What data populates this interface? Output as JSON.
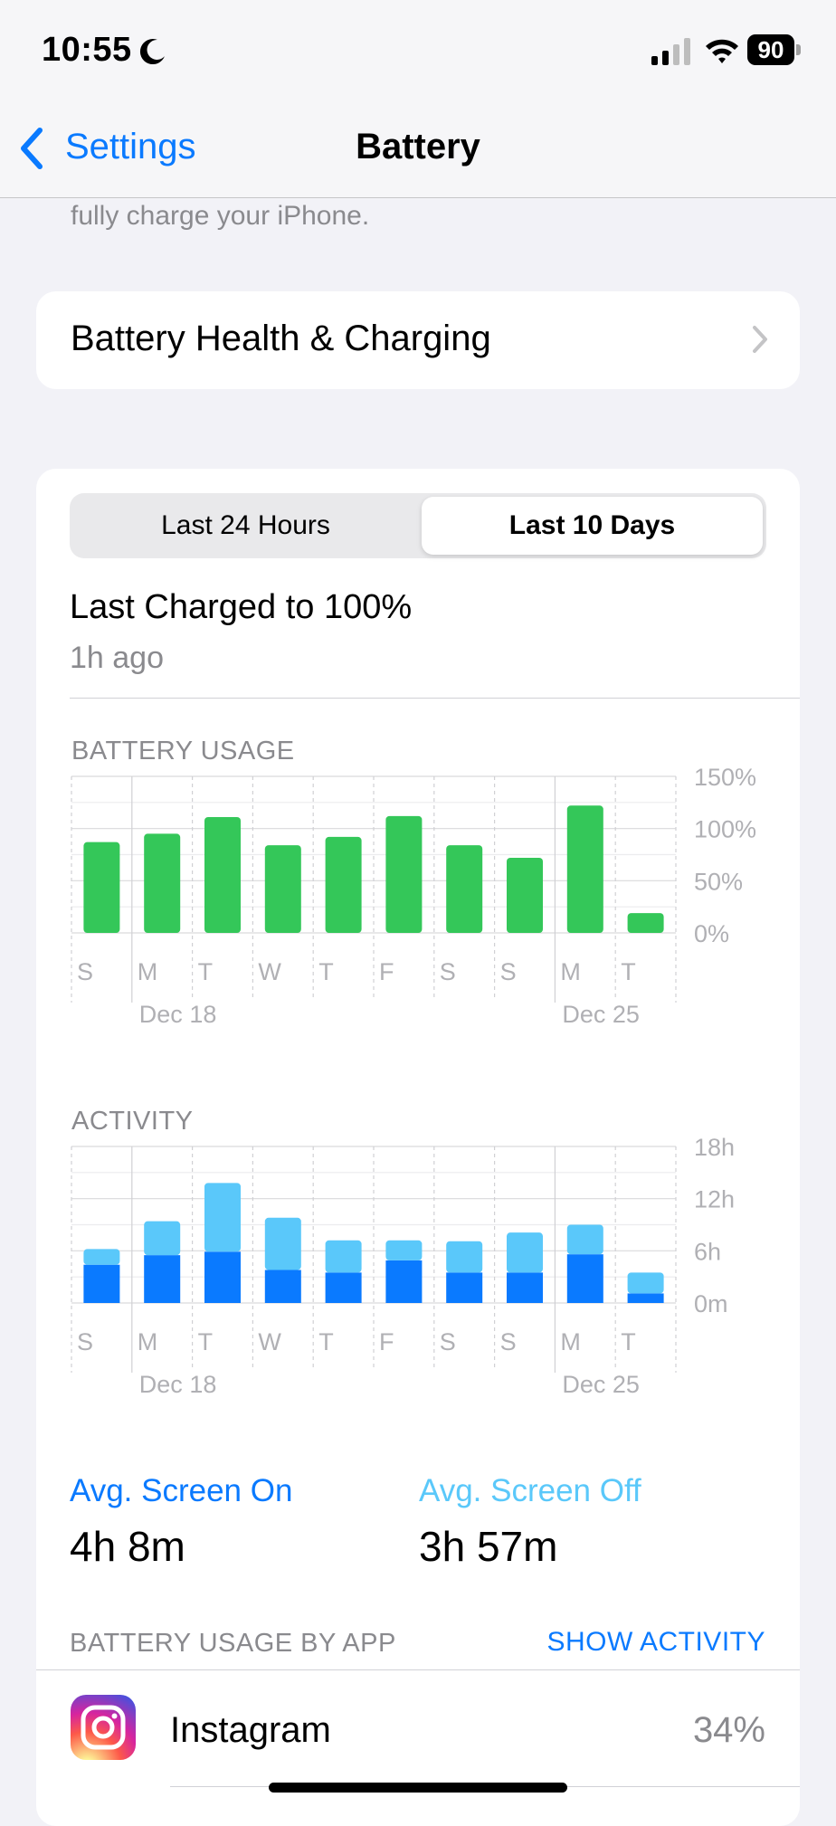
{
  "status_bar": {
    "time": "10:55",
    "battery_level": "90"
  },
  "nav": {
    "back_label": "Settings",
    "title": "Battery"
  },
  "description_fragment": "fully charge your iPhone.",
  "health_row": {
    "label": "Battery Health & Charging"
  },
  "segmented": {
    "options": [
      "Last 24 Hours",
      "Last 10 Days"
    ],
    "selected": "Last 10 Days"
  },
  "last_charged": {
    "title": "Last Charged to 100%",
    "subtitle": "1h ago"
  },
  "battery_section_label": "BATTERY USAGE",
  "activity_section_label": "ACTIVITY",
  "averages": {
    "screen_on_label": "Avg. Screen On",
    "screen_on_value": "4h 8m",
    "screen_off_label": "Avg. Screen Off",
    "screen_off_value": "3h 57m"
  },
  "by_app": {
    "label": "BATTERY USAGE BY APP",
    "action": "SHOW ACTIVITY"
  },
  "apps": [
    {
      "name": "Instagram",
      "percent": "34%"
    }
  ],
  "colors": {
    "accent": "#0a7aff",
    "battery_green": "#34c759",
    "screen_on": "#0a7aff",
    "screen_off": "#5ac8fa"
  },
  "chart_data": [
    {
      "type": "bar",
      "title": "BATTERY USAGE",
      "categories": [
        "S",
        "M",
        "T",
        "W",
        "T",
        "F",
        "S",
        "S",
        "M",
        "T"
      ],
      "date_labels": [
        {
          "index": 1,
          "text": "Dec 18"
        },
        {
          "index": 8,
          "text": "Dec 25"
        }
      ],
      "y_ticks": [
        "150%",
        "100%",
        "50%",
        "0%"
      ],
      "ylim": [
        0,
        150
      ],
      "series": [
        {
          "values": [
            87,
            95,
            111,
            84,
            92,
            112,
            84,
            72,
            122,
            19
          ]
        }
      ],
      "grid": true
    },
    {
      "type": "bar",
      "stacked": true,
      "title": "ACTIVITY",
      "categories": [
        "S",
        "M",
        "T",
        "W",
        "T",
        "F",
        "S",
        "S",
        "M",
        "T"
      ],
      "date_labels": [
        {
          "index": 1,
          "text": "Dec 18"
        },
        {
          "index": 8,
          "text": "Dec 25"
        }
      ],
      "y_ticks": [
        "18h",
        "12h",
        "6h",
        "0m"
      ],
      "ylim": [
        0,
        18
      ],
      "series": [
        {
          "name": "Avg. Screen On",
          "values": [
            4.4,
            5.5,
            5.9,
            3.8,
            3.5,
            4.9,
            3.5,
            3.5,
            5.6,
            1.1
          ]
        },
        {
          "name": "Avg. Screen Off",
          "values": [
            1.8,
            3.9,
            7.9,
            6.0,
            3.7,
            2.3,
            3.6,
            4.6,
            3.4,
            2.4
          ]
        }
      ],
      "grid": true
    }
  ]
}
